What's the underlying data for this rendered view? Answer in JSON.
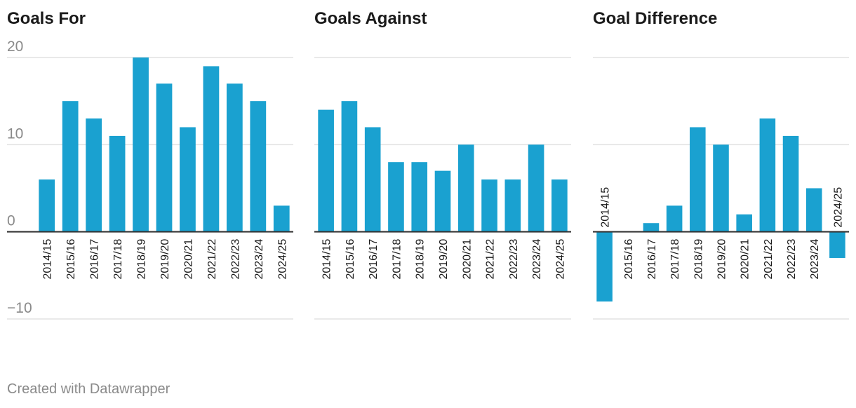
{
  "chart_data": {
    "type": "bar",
    "categories": [
      "2014/15",
      "2015/16",
      "2016/17",
      "2017/18",
      "2018/19",
      "2019/20",
      "2020/21",
      "2021/22",
      "2022/23",
      "2023/24",
      "2024/25"
    ],
    "y_ticks": [
      -10,
      0,
      10,
      20
    ],
    "y_tick_labels": [
      "−10",
      "0",
      "10",
      "20"
    ],
    "ylim": [
      -10,
      20
    ],
    "grid": true,
    "bar_color": "#1aa1d0",
    "panels": [
      {
        "title": "Goals For",
        "values": [
          6,
          15,
          13,
          11,
          20,
          17,
          12,
          19,
          17,
          15,
          3
        ]
      },
      {
        "title": "Goals Against",
        "values": [
          14,
          15,
          12,
          8,
          8,
          7,
          10,
          6,
          6,
          10,
          6
        ]
      },
      {
        "title": "Goal Difference",
        "values": [
          -8,
          0,
          1,
          3,
          12,
          10,
          2,
          13,
          11,
          5,
          -3
        ]
      }
    ]
  },
  "footer": "Created with Datawrapper"
}
